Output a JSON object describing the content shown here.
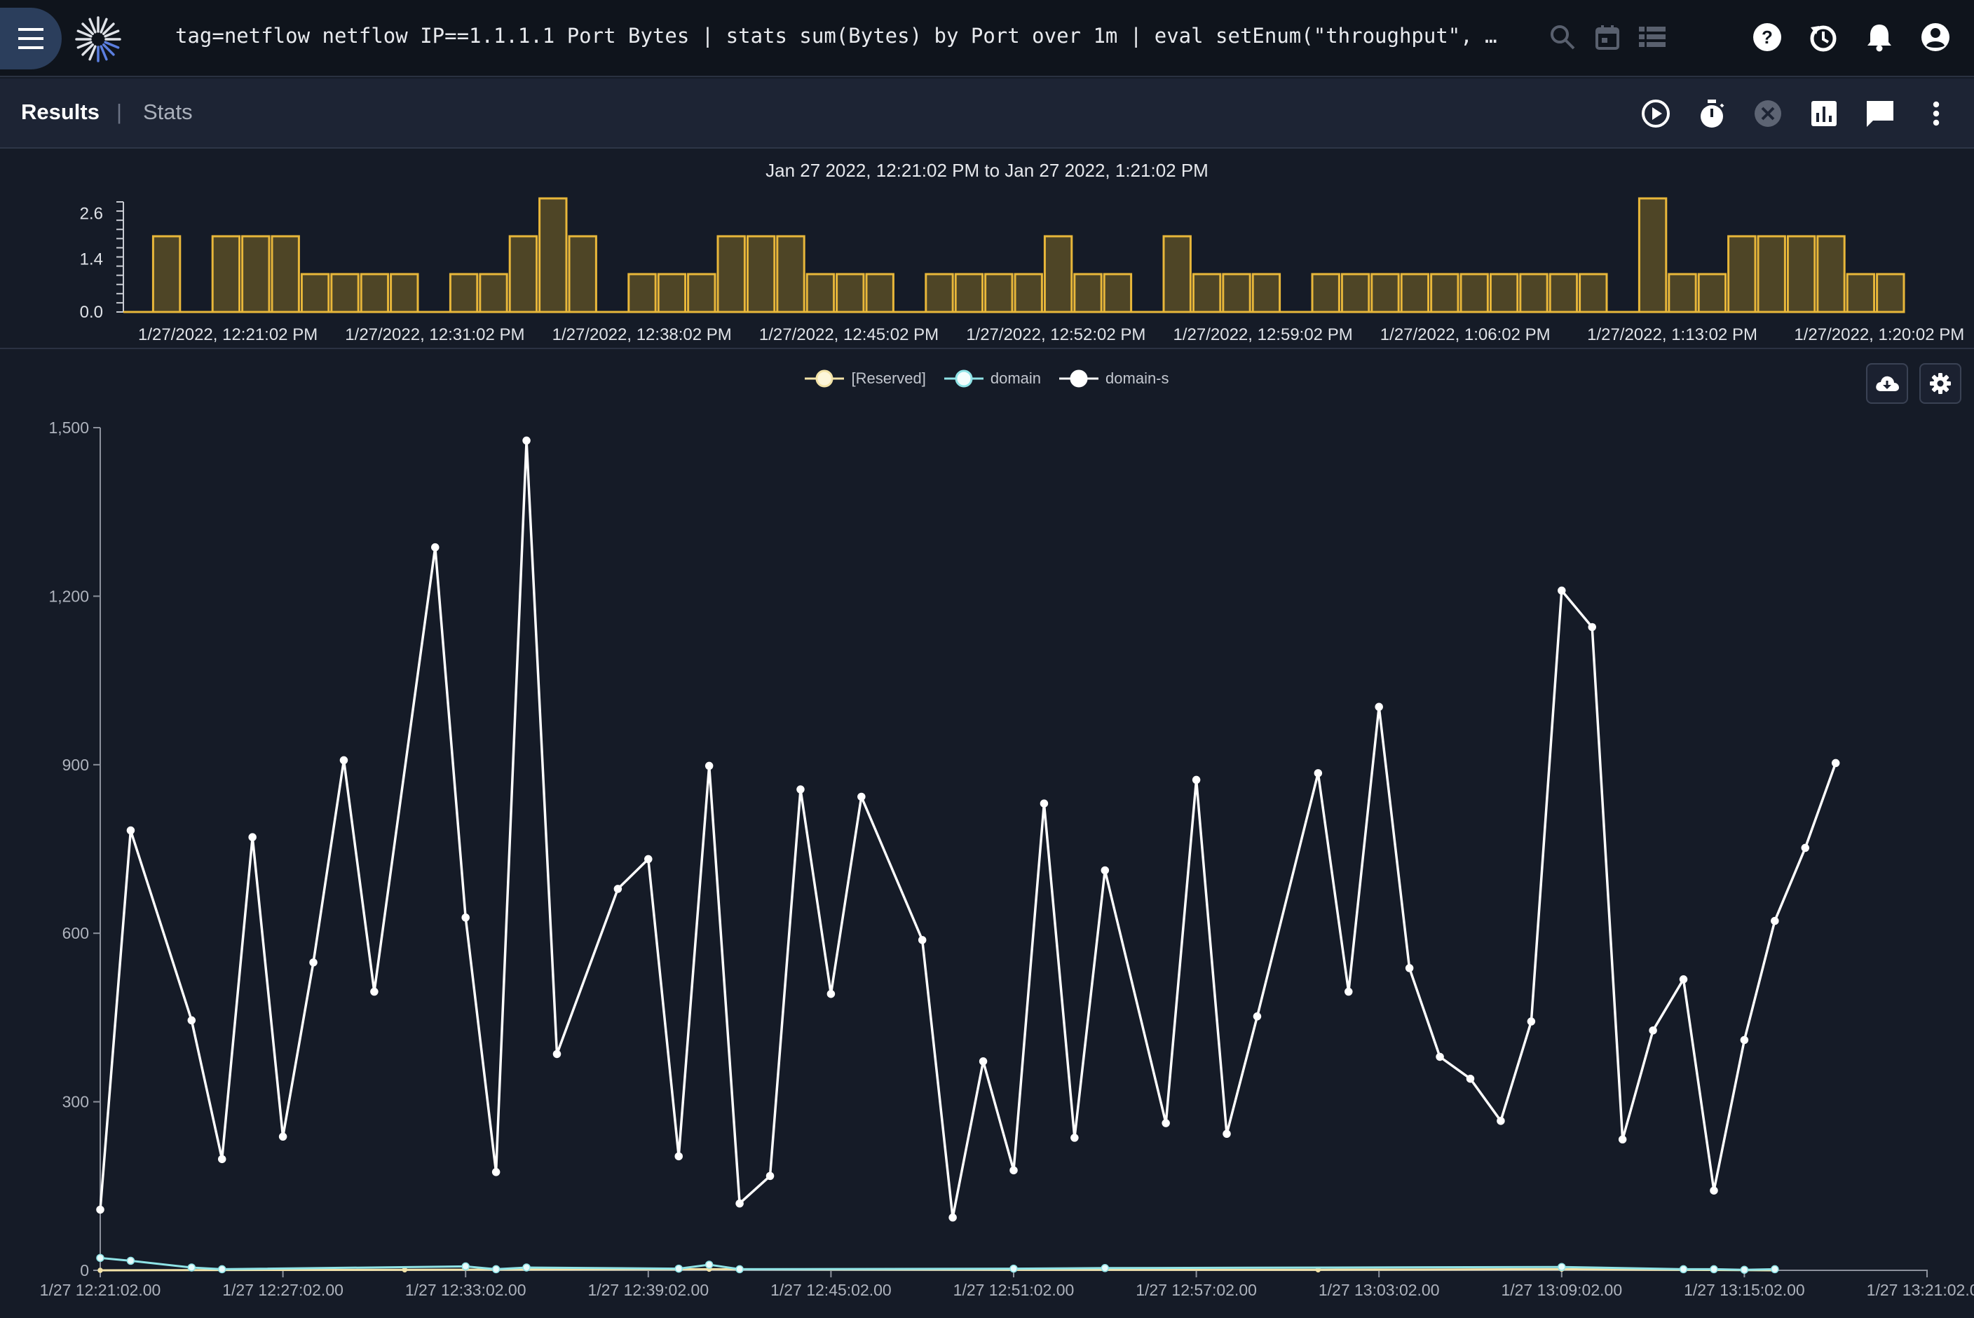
{
  "query": "tag=netflow netflow IP==1.1.1.1 Port Bytes | stats sum(Bytes) by Port over 1m | eval setEnum(\"throughput\", toFl…",
  "tabs": {
    "results": "Results",
    "separator": "|",
    "stats": "Stats"
  },
  "top_icons": [
    "search-icon",
    "calendar-icon",
    "list-icon",
    "help-icon",
    "history-icon",
    "bell-icon",
    "account-icon"
  ],
  "toolbar_icons": [
    "play-icon",
    "timer-icon",
    "cancel-icon",
    "chart-icon",
    "comment-icon",
    "more-vert-icon"
  ],
  "colors": {
    "accent": "#e8b73a",
    "bar_fill": "#4e4526",
    "line_white": "#ffffff",
    "line_domain": "#8fe3e6",
    "line_reserved": "#f3e3a8",
    "background": "#151b27"
  },
  "chart_data": [
    {
      "type": "bar",
      "title": "Jan 27 2022, 12:21:02 PM to Jan 27 2022, 1:21:02 PM",
      "ytick_labels": [
        "2.6",
        "1.4",
        "0.0"
      ],
      "ylim": [
        0,
        3
      ],
      "x_tick_labels": [
        "1/27/2022, 12:21:02 PM",
        "1/27/2022, 12:31:02 PM",
        "1/27/2022, 12:38:02 PM",
        "1/27/2022, 12:45:02 PM",
        "1/27/2022, 12:52:02 PM",
        "1/27/2022, 12:59:02 PM",
        "1/27/2022, 1:06:02 PM",
        "1/27/2022, 1:13:02 PM",
        "1/27/2022, 1:20:02 PM"
      ],
      "values": [
        0,
        2,
        0,
        2,
        2,
        2,
        1,
        1,
        1,
        1,
        0,
        1,
        1,
        2,
        3,
        2,
        0,
        1,
        1,
        1,
        2,
        2,
        2,
        1,
        1,
        1,
        0,
        1,
        1,
        1,
        1,
        2,
        1,
        1,
        0,
        2,
        1,
        1,
        1,
        0,
        1,
        1,
        1,
        1,
        1,
        1,
        1,
        1,
        1,
        1,
        0,
        3,
        1,
        1,
        2,
        2,
        2,
        2,
        1,
        1
      ]
    },
    {
      "type": "line",
      "legend": [
        "[Reserved]",
        "domain",
        "domain-s"
      ],
      "legend_position": "top-center",
      "ylim": [
        0,
        1500
      ],
      "y_tick_labels": [
        "1,500",
        "1,200",
        "900",
        "600",
        "300",
        "0"
      ],
      "x_tick_labels": [
        "1/27 12:21:02.00",
        "1/27 12:27:02.00",
        "1/27 12:33:02.00",
        "1/27 12:39:02.00",
        "1/27 12:45:02.00",
        "1/27 12:51:02.00",
        "1/27 12:57:02.00",
        "1/27 13:03:02.00",
        "1/27 13:09:02.00",
        "1/27 13:15:02.00",
        "1/27 13:21:02.00"
      ],
      "x_unit": "minutes after 12:21:02",
      "series": [
        {
          "name": "domain-s",
          "x": [
            0,
            1,
            3,
            4,
            5,
            6,
            7,
            8,
            9,
            11,
            12,
            13,
            14,
            15,
            17,
            18,
            19,
            20,
            21,
            22,
            23,
            24,
            25,
            27,
            28,
            29,
            30,
            31,
            32,
            33,
            35,
            36,
            37,
            38,
            40,
            41,
            42,
            43,
            44,
            45,
            46,
            47,
            48,
            49,
            50,
            51,
            52,
            53,
            54,
            55,
            56,
            57
          ],
          "values": [
            108,
            783,
            445,
            198,
            771,
            238,
            548,
            908,
            496,
            1287,
            628,
            175,
            1477,
            385,
            679,
            732,
            203,
            898,
            119,
            168,
            856,
            492,
            843,
            588,
            94,
            372,
            178,
            831,
            236,
            712,
            262,
            873,
            243,
            452,
            885,
            496,
            1003,
            538,
            380,
            341,
            266,
            443,
            1210,
            1145,
            233,
            427,
            518,
            142,
            410,
            622,
            752,
            903
          ]
        },
        {
          "name": "domain",
          "x": [
            0,
            1,
            3,
            4,
            12,
            13,
            14,
            19,
            20,
            21,
            30,
            33,
            48,
            52,
            53,
            54,
            55
          ],
          "values": [
            22,
            17,
            5,
            2,
            7,
            2,
            5,
            3,
            10,
            2,
            3,
            4,
            6,
            2,
            2,
            1,
            2
          ]
        },
        {
          "name": "[Reserved]",
          "x": [
            0,
            10,
            20,
            30,
            40,
            48,
            55
          ],
          "values": [
            0,
            1,
            2,
            1,
            1,
            2,
            0
          ]
        }
      ]
    }
  ]
}
